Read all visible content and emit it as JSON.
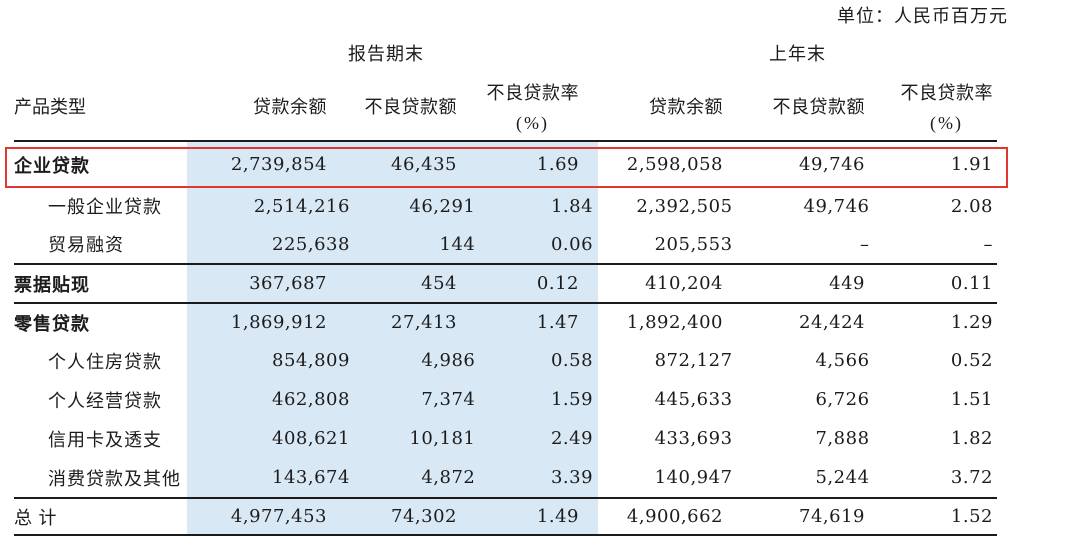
{
  "unit_label": "单位：人民币百万元",
  "table": {
    "group_headers": {
      "current": "报告期末",
      "previous": "上年末"
    },
    "col_headers": {
      "product_type": "产品类型",
      "loan_balance": "贷款余额",
      "npl_amount": "不良贷款额",
      "npl_ratio_line1": "不良贷款率",
      "npl_ratio_line2": "(%)"
    },
    "rows": [
      {
        "label": "企业贷款",
        "values": [
          "2,739,854",
          "46,435",
          "1.69",
          "2,598,058",
          "49,746",
          "1.91"
        ]
      },
      {
        "label": "一般企业贷款",
        "values": [
          "2,514,216",
          "46,291",
          "1.84",
          "2,392,505",
          "49,746",
          "2.08"
        ]
      },
      {
        "label": "贸易融资",
        "values": [
          "225,638",
          "144",
          "0.06",
          "205,553",
          "–",
          "–"
        ]
      },
      {
        "label": "票据贴现",
        "values": [
          "367,687",
          "454",
          "0.12",
          "410,204",
          "449",
          "0.11"
        ]
      },
      {
        "label": "零售贷款",
        "values": [
          "1,869,912",
          "27,413",
          "1.47",
          "1,892,400",
          "24,424",
          "1.29"
        ]
      },
      {
        "label": "个人住房贷款",
        "values": [
          "854,809",
          "4,986",
          "0.58",
          "872,127",
          "4,566",
          "0.52"
        ]
      },
      {
        "label": "个人经营贷款",
        "values": [
          "462,808",
          "7,374",
          "1.59",
          "445,633",
          "6,726",
          "1.51"
        ]
      },
      {
        "label": "信用卡及透支",
        "values": [
          "408,621",
          "10,181",
          "2.49",
          "433,693",
          "7,888",
          "1.82"
        ]
      },
      {
        "label": "消费贷款及其他",
        "values": [
          "143,674",
          "4,872",
          "3.39",
          "140,947",
          "5,244",
          "3.72"
        ]
      },
      {
        "label": "总 计",
        "values": [
          "4,977,453",
          "74,302",
          "1.49",
          "4,900,662",
          "74,619",
          "1.52"
        ]
      }
    ],
    "colors": {
      "highlight_band": "#d6e6f4",
      "annotation_box": "#e0382e",
      "rule": "#1b1b1b"
    }
  }
}
